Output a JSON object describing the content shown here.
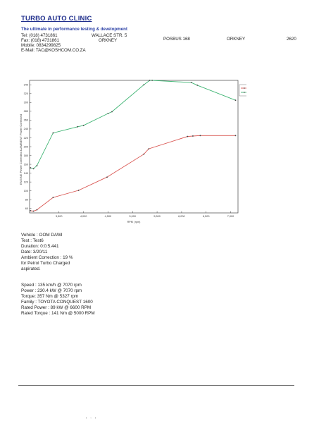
{
  "header": {
    "company": "TURBO AUTO CLINIC",
    "tagline": "The ultimate in performance testing & development",
    "tel": "Tel: (018) 4731861",
    "fax": "Fax: (018) 4731861",
    "mobile": "Mobile: 0834299825",
    "email": "E-Mail: TAC@KOSHCOM.CO.ZA",
    "street": "WALLACE STR. 5",
    "street_town": "ORKNEY",
    "po_box": "POSBUS 168",
    "po_town": "ORKNEY",
    "postal_code": "2620"
  },
  "chart_data": {
    "type": "line",
    "ylabel": "ENGINE Power Corrected & AMBIENT Power Corrected",
    "xlabel": "RPM ( rpm)",
    "xlim": [
      2900,
      7150
    ],
    "ylim": [
      50,
      350
    ],
    "x_ticks": [
      "3,500",
      "4,000",
      "4,500",
      "5,000",
      "5,500",
      "6,000",
      "6,500",
      "7,000"
    ],
    "x_tick_values": [
      3500,
      4000,
      4500,
      5000,
      5500,
      6000,
      6500,
      7000
    ],
    "y_ticks": [
      "340",
      "320",
      "300",
      "280",
      "260",
      "240",
      "220",
      "200",
      "180",
      "160",
      "140",
      "120",
      "100",
      "80",
      "60"
    ],
    "y_tick_values": [
      340,
      320,
      300,
      280,
      260,
      240,
      220,
      200,
      180,
      160,
      140,
      120,
      100,
      80,
      60
    ],
    "grid": false,
    "legend_position": "top-right",
    "series": [
      {
        "name": "OOM DAWI : Power",
        "color": "#d9534f",
        "x": [
          2920,
          2980,
          3050,
          3380,
          3900,
          4480,
          5230,
          5330,
          6120,
          6230,
          6380,
          7100
        ],
        "y": [
          55,
          54,
          57,
          85,
          101,
          131,
          183,
          195,
          223,
          224,
          225,
          225
        ]
      },
      {
        "name": "OOM DAWI : Torque",
        "color": "#3cb371",
        "x": [
          2920,
          2980,
          3050,
          3380,
          3880,
          4000,
          4500,
          4580,
          5230,
          5350,
          5400,
          6200,
          6320,
          7100
        ],
        "y": [
          152,
          150,
          157,
          231,
          245,
          248,
          275,
          279,
          340,
          350,
          350,
          345,
          339,
          305
        ]
      }
    ]
  },
  "info": {
    "vehicle": "Vehicle : OOM DAWI",
    "test": "Test :  Test6",
    "duration": "Duration: 0:0:5.441",
    "date": "Date:  3/20/11",
    "ambient": "Ambient Correction : 19 %",
    "fuel1": " for Petrol Turbo Charged",
    "fuel2": "aspirated.",
    "speed": "Speed : 135 km/h @ 7070 rpm",
    "power": "Power : 230.4 kW @ 7070 rpm",
    "torque": "Torque: 357 Nm @ 5327 rpm",
    "family": "Family : TOYOTA CONQUEST 1600",
    "rated_power": "Rated Power : 89 kW @ 6600 RPM",
    "rated_torque": "Rated Torque : 141 Nm @ 5000 RPM"
  },
  "colors": {
    "company": "#1f2e8c",
    "power_line": "#d9534f",
    "torque_line": "#3cb371"
  }
}
